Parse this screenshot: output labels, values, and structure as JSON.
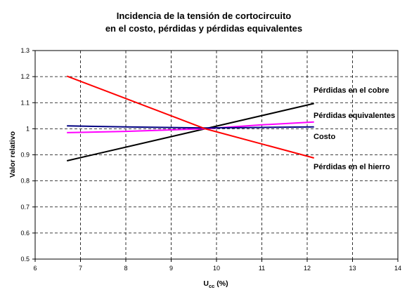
{
  "chart_data": {
    "type": "line",
    "title_lines": [
      "Incidencia de la tensión de cortocircuito",
      "en el costo, pérdidas y pérdidas equivalentes"
    ],
    "xlabel_main": "U",
    "xlabel_sub": "cc",
    "xlabel_rest": " (%)",
    "ylabel": "Valor relativo",
    "xlim": [
      6,
      14
    ],
    "ylim": [
      0.5,
      1.3
    ],
    "xticks": [
      "6",
      "7",
      "8",
      "9",
      "10",
      "11",
      "12",
      "13",
      "14"
    ],
    "yticks": [
      "0.5",
      "0.6",
      "0.7",
      "0.8",
      "0.9",
      "1",
      "1.1",
      "1.2",
      "1.3"
    ],
    "grid": true,
    "series": [
      {
        "name": "Pérdidas en el cobre",
        "color": "#000000",
        "x": [
          6.7,
          9.75,
          12.15
        ],
        "y": [
          0.877,
          1.0,
          1.097
        ]
      },
      {
        "name": "Pérdidas equivalentes",
        "color": "#ff00ff",
        "x": [
          6.7,
          8.0,
          9.75,
          11.0,
          12.15
        ],
        "y": [
          0.985,
          0.99,
          1.0,
          1.015,
          1.026
        ]
      },
      {
        "name": "Costo",
        "color": "#000080",
        "x": [
          6.7,
          8.0,
          9.75,
          11.0,
          12.15
        ],
        "y": [
          1.011,
          1.007,
          1.003,
          1.005,
          1.007
        ]
      },
      {
        "name": "Pérdidas en el hierro",
        "color": "#ff0000",
        "x": [
          6.7,
          9.75,
          12.15
        ],
        "y": [
          1.202,
          1.0,
          0.888
        ]
      }
    ]
  }
}
